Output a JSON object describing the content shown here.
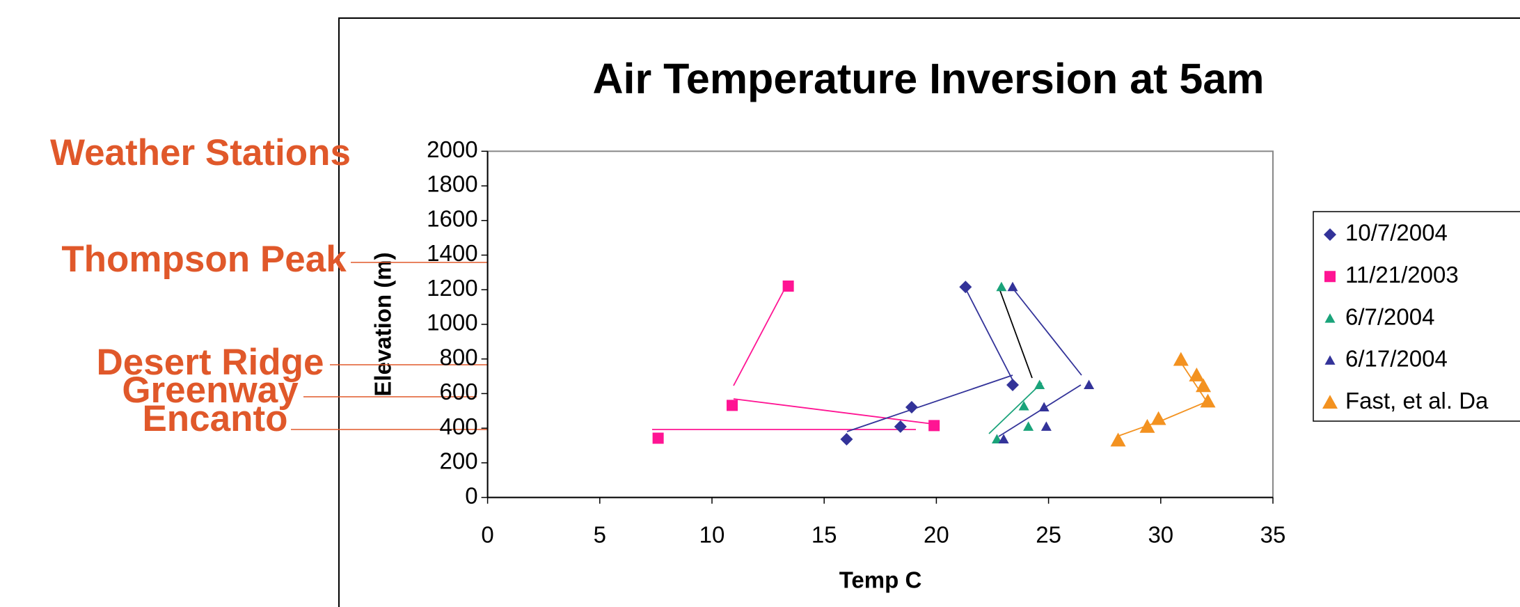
{
  "chart_data": {
    "type": "scatter",
    "title": "Air Temperature Inversion at 5am",
    "x_label": "Temp C",
    "y_label": "Elevation (m)",
    "xlim": [
      0,
      35
    ],
    "xticks": [
      0,
      5,
      10,
      15,
      20,
      25,
      30,
      35
    ],
    "ylim": [
      0,
      2000
    ],
    "yticks": [
      0,
      200,
      400,
      600,
      800,
      1000,
      1200,
      1400,
      1600,
      1800,
      2000
    ],
    "series": [
      {
        "name": "10/7/2004",
        "color": "#333399",
        "marker": "diamond",
        "x": [
          16.0,
          18.4,
          18.9,
          23.4,
          21.3
        ],
        "values": [
          336,
          409,
          521,
          650,
          1216
        ]
      },
      {
        "name": "11/21/2003",
        "color": "#ff1493",
        "marker": "square",
        "x": [
          7.6,
          19.9,
          10.9,
          13.4
        ],
        "values": [
          342,
          415,
          532,
          1221
        ]
      },
      {
        "name": "6/7/2004",
        "color": "#1aa37a",
        "marker": "triangle",
        "x": [
          22.7,
          24.1,
          23.9,
          24.6,
          22.9
        ],
        "values": [
          336,
          409,
          527,
          650,
          1216
        ]
      },
      {
        "name": "6/17/2004",
        "color": "#333399",
        "marker": "triangle",
        "x": [
          23.0,
          24.9,
          24.8,
          26.8,
          23.4
        ],
        "values": [
          336,
          409,
          521,
          650,
          1216
        ]
      },
      {
        "name": "Fast, et al.  Da",
        "color": "#f39220",
        "marker": "triangle-large",
        "x": [
          28.1,
          29.4,
          29.9,
          32.1,
          31.9,
          31.6,
          30.9
        ],
        "values": [
          330,
          409,
          454,
          555,
          644,
          706,
          796
        ]
      }
    ],
    "annotations": [
      "Weather Stations",
      "Thompson Peak",
      "Desert Ridge",
      "Greenway",
      "Encanto"
    ]
  }
}
